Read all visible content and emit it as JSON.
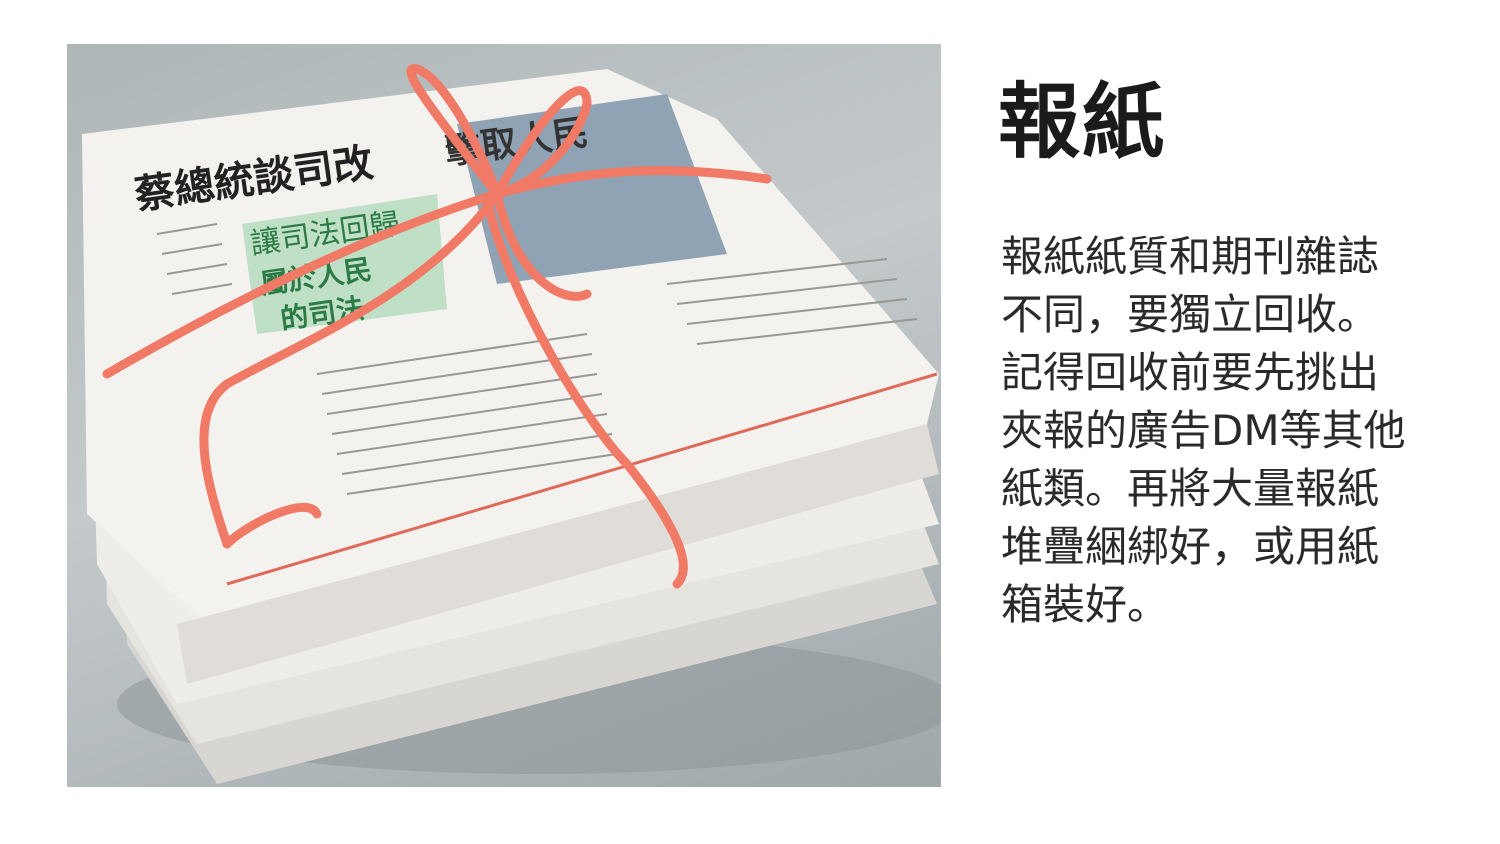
{
  "photo": {
    "headline": "蔡總統談司改",
    "headline_tail": "擊取人民",
    "subhead": "讓司法回歸",
    "subhead2": "屬於人民",
    "subhead3": "的司法",
    "twine_color": "#f07a66"
  },
  "title": "報紙",
  "description_lines": [
    "報紙紙質和期刊雜誌",
    "不同，要獨立回收。",
    "記得回收前要先挑出",
    "夾報的廣告DM等其他",
    "紙類。再將大量報紙",
    "堆疊綑綁好，或用紙",
    "箱裝好。"
  ]
}
